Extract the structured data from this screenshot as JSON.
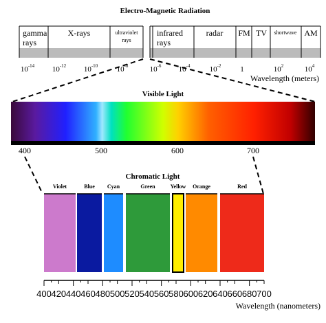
{
  "em": {
    "title": "Electro-Magnetic Radiation",
    "bands": [
      "gamma",
      "rays",
      "X-rays",
      "ultraviolet",
      "rays",
      "infrared",
      "rays",
      "radar",
      "FM",
      "TV",
      "shortwave",
      "AM"
    ],
    "ticks": [
      {
        "base": "10",
        "exp": "-14"
      },
      {
        "base": "10",
        "exp": "-12"
      },
      {
        "base": "10",
        "exp": "-10"
      },
      {
        "base": "10",
        "exp": "-8"
      },
      {
        "base": "10",
        "exp": "-6"
      },
      {
        "base": "10",
        "exp": "-4"
      },
      {
        "base": "10",
        "exp": "-2"
      },
      {
        "base": "1"
      },
      {
        "base": "10",
        "exp": "2"
      },
      {
        "base": "10",
        "exp": "4"
      }
    ],
    "axis_label": "Wavelength (meters)"
  },
  "visible": {
    "title": "Visible Light",
    "ticks": [
      "400",
      "500",
      "600",
      "700"
    ]
  },
  "chromatic": {
    "title": "Chromatic Light",
    "colors": [
      "Violet",
      "Blue",
      "Cyan",
      "Green",
      "Yellow",
      "Orange",
      "Red"
    ],
    "ticks": [
      "400",
      "420",
      "440",
      "460",
      "480",
      "500",
      "520",
      "540",
      "560",
      "580",
      "600",
      "620",
      "640",
      "660",
      "680",
      "700"
    ],
    "axis_label": "Wavelength (nanometers)"
  }
}
